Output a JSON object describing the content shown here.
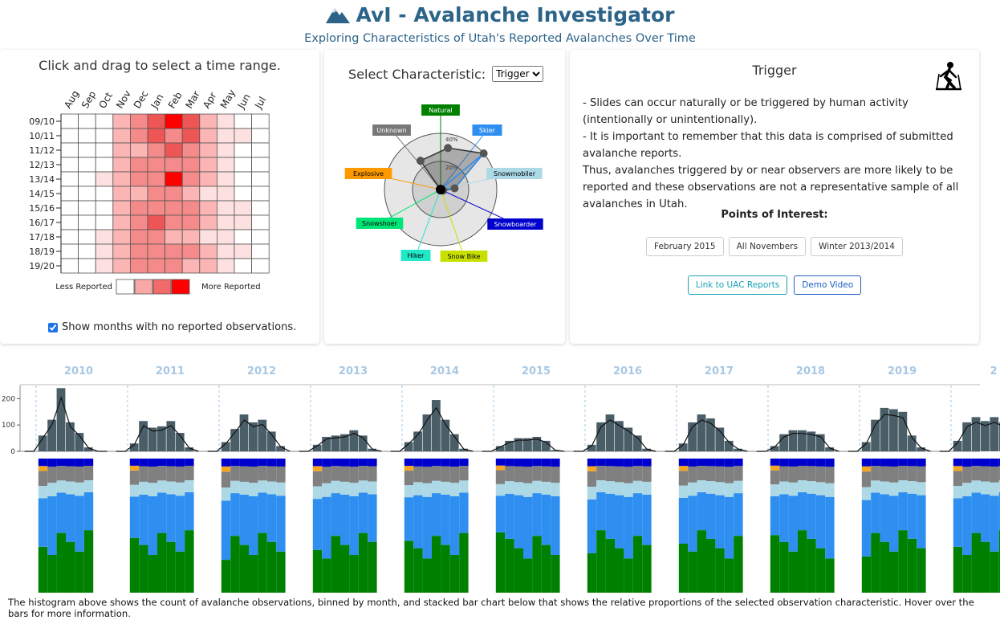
{
  "header": {
    "title": "AvI - Avalanche Investigator",
    "subtitle": "Exploring Characteristics of Utah's Reported Avalanches Over Time",
    "logo_icon": "mountain-icon"
  },
  "heatmap_panel": {
    "instruction": "Click and drag to select a time range.",
    "months": [
      "Aug",
      "Sep",
      "Oct",
      "Nov",
      "Dec",
      "Jan",
      "Feb",
      "Mar",
      "Apr",
      "May",
      "Jun",
      "Jul"
    ],
    "seasons": [
      "09/10",
      "10/11",
      "11/12",
      "12/13",
      "13/14",
      "14/15",
      "15/16",
      "16/17",
      "17/18",
      "18/19",
      "19/20"
    ],
    "intensity": [
      [
        0,
        0,
        0,
        2,
        3,
        4,
        5,
        4,
        2,
        1,
        0,
        0
      ],
      [
        0,
        0,
        0,
        2,
        3,
        4,
        3,
        4,
        2,
        1,
        1,
        0
      ],
      [
        0,
        0,
        0,
        2,
        2,
        3,
        4,
        3,
        2,
        1,
        0,
        0
      ],
      [
        0,
        0,
        0,
        2,
        3,
        3,
        3,
        3,
        2,
        1,
        0,
        0
      ],
      [
        0,
        0,
        1,
        2,
        3,
        3,
        5,
        3,
        2,
        1,
        0,
        0
      ],
      [
        0,
        0,
        0,
        2,
        2,
        3,
        3,
        2,
        1,
        1,
        0,
        0
      ],
      [
        0,
        0,
        0,
        2,
        3,
        3,
        3,
        3,
        2,
        1,
        1,
        0
      ],
      [
        0,
        0,
        0,
        2,
        3,
        4,
        3,
        3,
        2,
        1,
        1,
        0
      ],
      [
        0,
        0,
        1,
        2,
        3,
        3,
        2,
        2,
        1,
        1,
        0,
        0
      ],
      [
        0,
        0,
        1,
        2,
        3,
        3,
        3,
        3,
        2,
        1,
        1,
        0
      ],
      [
        0,
        0,
        1,
        2,
        3,
        3,
        3,
        2,
        2,
        1,
        0,
        0
      ]
    ],
    "legend_less": "Less Reported",
    "legend_more": "More Reported",
    "legend_colors": [
      "#ffffff",
      "#f9a8a8",
      "#f26a6a",
      "#ff0000"
    ],
    "checkbox_label": "Show months with no reported observations.",
    "checkbox_checked": true
  },
  "radar_panel": {
    "label": "Select Characteristic:",
    "selected": "Trigger",
    "options": [
      "Trigger"
    ],
    "ring_labels": [
      "20%",
      "40%"
    ],
    "categories": [
      {
        "name": "Natural",
        "color": "#008000",
        "text": "#ffffff",
        "value": 0.3
      },
      {
        "name": "Skier",
        "color": "#2e8ff0",
        "text": "#ffffff",
        "value": 0.42
      },
      {
        "name": "Snowmobiler",
        "color": "#add8e6",
        "text": "#000000",
        "value": 0.1
      },
      {
        "name": "Snowboarder",
        "color": "#0000cc",
        "text": "#ffffff",
        "value": 0.02
      },
      {
        "name": "Snow Bike",
        "color": "#c8e000",
        "text": "#000000",
        "value": 0.0
      },
      {
        "name": "Hiker",
        "color": "#20e8c8",
        "text": "#000000",
        "value": 0.0
      },
      {
        "name": "Snowshoer",
        "color": "#00e676",
        "text": "#000000",
        "value": 0.0
      },
      {
        "name": "Explosive",
        "color": "#ff9900",
        "text": "#000000",
        "value": 0.0
      },
      {
        "name": "Unknown",
        "color": "#777777",
        "text": "#ffffff",
        "value": 0.25
      }
    ]
  },
  "info_panel": {
    "title": "Trigger",
    "icon": "skier-icon",
    "lines": [
      "- Slides can occur naturally or be triggered by human activity (intentionally or unintentionally).",
      "- It is important to remember that this data is comprised of submitted avalanche reports.",
      "Thus, avalanches triggered by or near observers are more likely to be reported and these observations are not a representative sample of all avalanches in Utah."
    ],
    "poi_title": "Points of Interest:",
    "poi_buttons": [
      "February 2015",
      "All Novembers",
      "Winter 2013/2014"
    ],
    "link_buttons": [
      "Link to UAC Reports",
      "Demo Video"
    ]
  },
  "timeline": {
    "years": [
      "2010",
      "2011",
      "2012",
      "2013",
      "2014",
      "2015",
      "2016",
      "2017",
      "2018",
      "2019",
      "2"
    ],
    "y_ticks": [
      "0",
      "100",
      "200"
    ],
    "ymax": 250,
    "monthly_counts": [
      [
        0,
        0,
        60,
        120,
        240,
        110,
        70,
        15,
        0,
        0
      ],
      [
        0,
        0,
        30,
        115,
        90,
        95,
        115,
        70,
        15,
        0
      ],
      [
        0,
        0,
        35,
        85,
        140,
        110,
        120,
        75,
        20,
        0
      ],
      [
        0,
        0,
        25,
        55,
        60,
        65,
        80,
        60,
        10,
        0
      ],
      [
        0,
        0,
        35,
        75,
        140,
        195,
        120,
        65,
        10,
        0
      ],
      [
        0,
        0,
        20,
        40,
        50,
        50,
        55,
        40,
        5,
        0
      ],
      [
        0,
        0,
        25,
        110,
        140,
        115,
        90,
        60,
        10,
        0
      ],
      [
        0,
        0,
        30,
        110,
        140,
        125,
        90,
        40,
        10,
        0
      ],
      [
        0,
        0,
        20,
        65,
        80,
        80,
        75,
        65,
        15,
        0
      ],
      [
        0,
        0,
        35,
        120,
        165,
        160,
        150,
        60,
        15,
        0
      ],
      [
        0,
        0,
        40,
        110,
        130,
        115,
        130,
        110,
        20,
        0
      ]
    ],
    "stack_categories": [
      "Natural",
      "Skier",
      "Snowmobiler",
      "Unknown",
      "Explosive",
      "Snowboarder"
    ],
    "stack_colors": [
      "#008000",
      "#2e8ff0",
      "#add8e6",
      "#808080",
      "#f5a623",
      "#0000cc"
    ]
  },
  "caption": "The histogram above shows the count of avalanche observations, binned by month, and stacked bar chart below that shows the relative proportions of the selected observation characteristic. Hover over the bars for more information."
}
